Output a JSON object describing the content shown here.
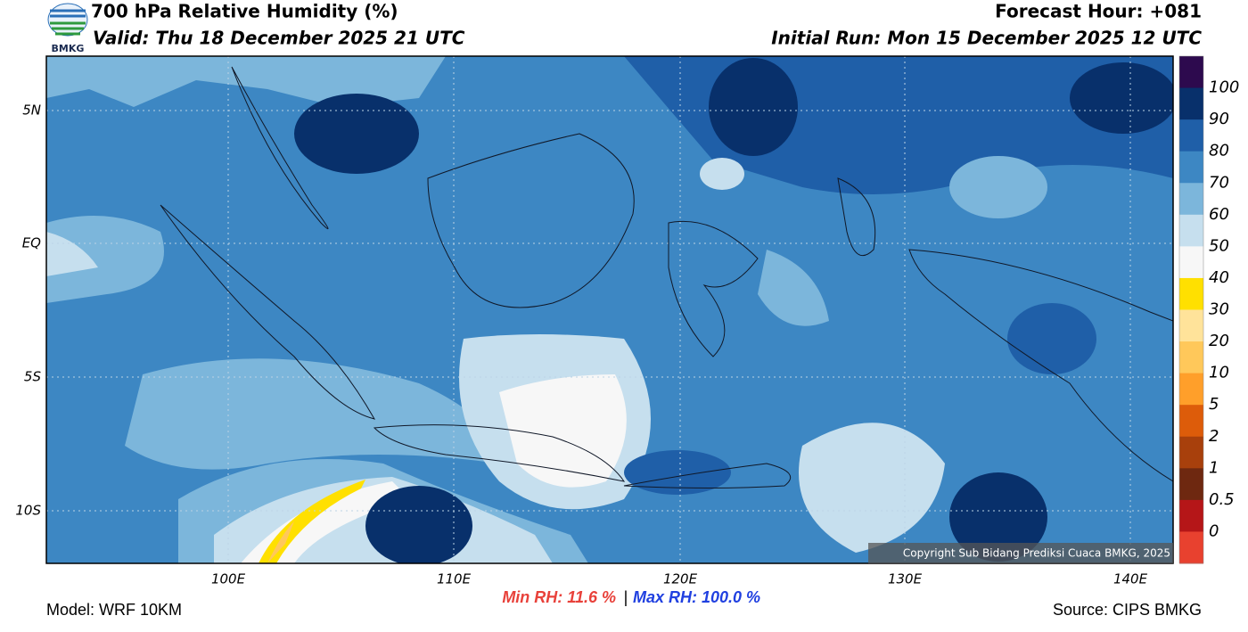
{
  "header": {
    "logo_text": "BMKG",
    "title": "700 hPa Relative Humidity (%)",
    "valid": "Valid: Thu 18 December 2025 21 UTC",
    "forecast_hour": "Forecast Hour: +081",
    "initial_run": "Initial Run: Mon 15 December 2025 12 UTC"
  },
  "map": {
    "lat_labels": [
      "5N",
      "EQ",
      "5S",
      "10S"
    ],
    "lon_labels": [
      "100E",
      "110E",
      "120E",
      "130E",
      "140E"
    ],
    "copyright": "Copyright Sub Bidang Prediksi Cuaca BMKG, 2025"
  },
  "colorbar": {
    "colors": [
      "#2d0a4e",
      "#08306b",
      "#1f5fa8",
      "#3d87c3",
      "#7cb6db",
      "#c6dfee",
      "#f7f7f7",
      "#ffe000",
      "#ffe39a",
      "#ffc85a",
      "#ff9f2a",
      "#dd5c0a",
      "#a8400c",
      "#6e2810",
      "#b51618",
      "#e8412f"
    ],
    "levels": [
      100,
      90,
      80,
      70,
      60,
      50,
      40,
      30,
      20,
      10,
      5,
      2,
      1,
      0.5,
      0
    ]
  },
  "footer": {
    "model": "Model: WRF 10KM",
    "min_rh": "Min RH:  11.6 %",
    "separator": "|",
    "max_rh": "Max RH: 100.0 %",
    "source": "Source: CIPS BMKG"
  }
}
